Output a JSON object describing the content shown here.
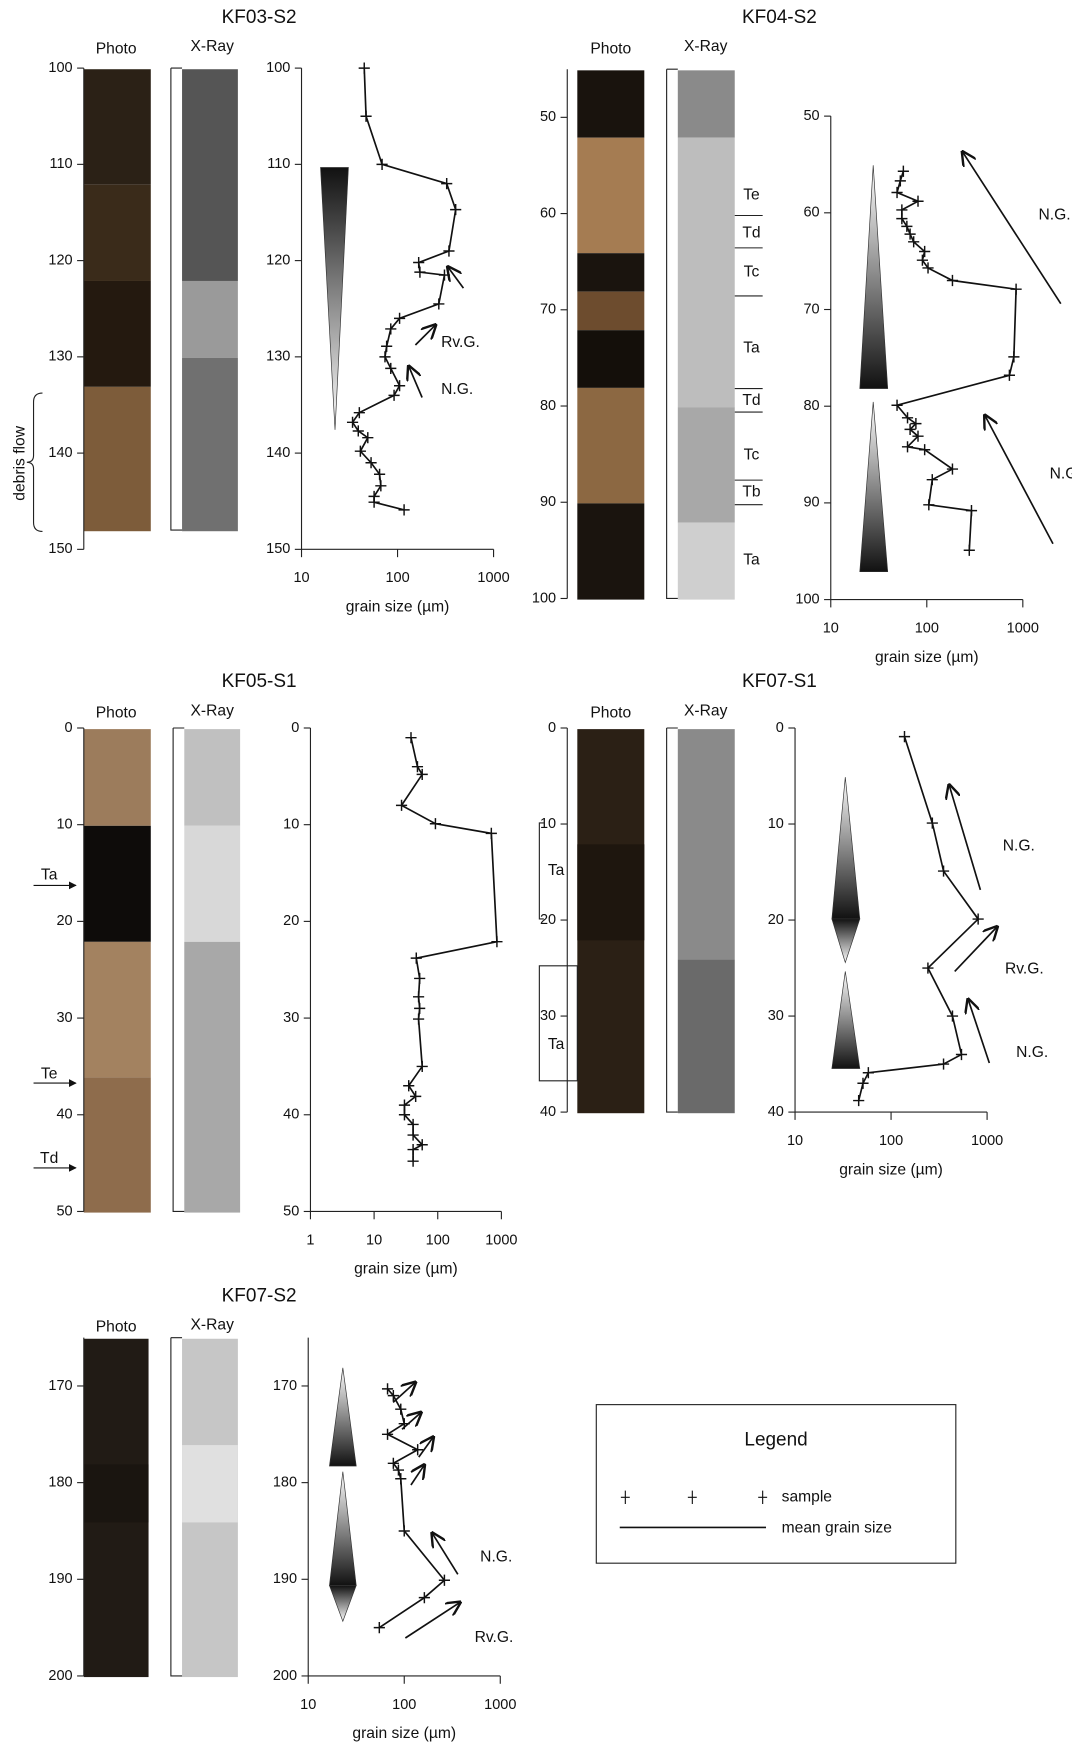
{
  "chart_data": [
    {
      "type": "line",
      "title": "KF03-S2",
      "image_labels": [
        "Photo",
        "X-Ray"
      ],
      "core_ylim": [
        100,
        150
      ],
      "core_yticks": [
        100,
        110,
        120,
        130,
        140,
        150
      ],
      "core_labels": [
        "debris flow"
      ],
      "xlabel": "grain size (µm)",
      "xscale": "log",
      "xlim": [
        10,
        1000
      ],
      "xticks": [
        10,
        100,
        1000
      ],
      "ylim": [
        100,
        150
      ],
      "yticks": [
        100,
        110,
        120,
        130,
        140,
        150
      ],
      "color": "#111111",
      "x": [
        45,
        47,
        69,
        325,
        403,
        343,
        166,
        171,
        308,
        269,
        105,
        85,
        77,
        74,
        85,
        105,
        92,
        40,
        34,
        39,
        49,
        41,
        53,
        65,
        67,
        57,
        57,
        117
      ],
      "y": [
        100,
        105,
        110,
        112,
        114.7,
        119,
        120.2,
        121.2,
        121.5,
        124.5,
        126,
        127.1,
        128.9,
        130,
        131.2,
        133,
        134,
        135.8,
        136.8,
        137.7,
        138.4,
        139.8,
        141,
        142.2,
        143.4,
        144.5,
        145.1,
        145.9
      ],
      "annotations": [
        "Rv.G.",
        "N.G."
      ]
    },
    {
      "type": "line",
      "title": "KF04-S2",
      "image_labels": [
        "Photo",
        "X-Ray"
      ],
      "core_ylim": [
        45,
        100
      ],
      "core_yticks": [
        50,
        60,
        70,
        80,
        90,
        100
      ],
      "core_labels": [
        "Te",
        "Td",
        "Tc",
        "Ta",
        "Td",
        "Tc",
        "Tb",
        "Ta"
      ],
      "xlabel": "grain size (µm)",
      "xscale": "log",
      "xlim": [
        10,
        1000
      ],
      "xticks": [
        10,
        100,
        1000
      ],
      "ylim": [
        50,
        100
      ],
      "yticks": [
        50,
        60,
        70,
        80,
        90,
        100
      ],
      "color": "#111111",
      "x": [
        57,
        53,
        49,
        81,
        55,
        55,
        62,
        67,
        73,
        95,
        90,
        103,
        185,
        851,
        807,
        725,
        49,
        63,
        77,
        67,
        81,
        63,
        95,
        185,
        114,
        105,
        292,
        277
      ],
      "y": [
        55.7,
        56.7,
        57.9,
        58.8,
        59.7,
        60.6,
        61.4,
        62.2,
        63,
        64,
        64.9,
        65.7,
        67,
        67.9,
        74.9,
        76.8,
        79.9,
        81.2,
        81.8,
        82.4,
        83.1,
        84.2,
        84.5,
        86.5,
        87.6,
        90.2,
        90.8,
        94.9
      ],
      "annotations": [
        "N.G.",
        "N.G."
      ]
    },
    {
      "type": "line",
      "title": "KF05-S1",
      "image_labels": [
        "Photo",
        "X-Ray"
      ],
      "core_ylim": [
        0,
        50
      ],
      "core_yticks": [
        0,
        10,
        20,
        30,
        40,
        50
      ],
      "core_labels": [
        "Ta",
        "Te",
        "Td"
      ],
      "xlabel": "grain size (µm)",
      "xscale": "log",
      "xlim": [
        1,
        1000
      ],
      "xticks": [
        1,
        10,
        100,
        1000
      ],
      "ylim": [
        0,
        50
      ],
      "yticks": [
        0,
        10,
        20,
        30,
        40,
        50
      ],
      "color": "#111111",
      "x": [
        38,
        48,
        57,
        27,
        92,
        695,
        851,
        46,
        52,
        50,
        52,
        50,
        57,
        35,
        45,
        30,
        30,
        41,
        41,
        57,
        41,
        41
      ],
      "y": [
        1,
        4,
        4.8,
        8,
        9.9,
        10.9,
        22.1,
        23.8,
        25.9,
        27.8,
        29,
        30.1,
        35,
        37,
        38.1,
        39,
        40,
        41,
        42.1,
        43.1,
        43.6,
        44.8
      ],
      "annotations": []
    },
    {
      "type": "line",
      "title": "KF07-S1",
      "image_labels": [
        "Photo",
        "X-Ray"
      ],
      "core_ylim": [
        0,
        40
      ],
      "core_yticks": [
        0,
        10,
        20,
        30,
        40
      ],
      "core_labels": [
        "Ta",
        "Ta"
      ],
      "xlabel": "grain size (µm)",
      "xscale": "log",
      "xlim": [
        10,
        1000
      ],
      "xticks": [
        10,
        100,
        1000
      ],
      "ylim": [
        0,
        40
      ],
      "yticks": [
        0,
        10,
        20,
        30,
        40
      ],
      "color": "#111111",
      "x": [
        138,
        269,
        352,
        807,
        242,
        436,
        541,
        352,
        58,
        51,
        46
      ],
      "y": [
        0.9,
        9.9,
        14.9,
        19.9,
        25,
        30,
        34,
        35,
        35.9,
        37,
        38.8
      ],
      "annotations": [
        "N.G.",
        "Rv.G.",
        "N.G."
      ]
    },
    {
      "type": "line",
      "title": "KF07-S2",
      "image_labels": [
        "Photo",
        "X-Ray"
      ],
      "core_ylim": [
        165,
        200
      ],
      "core_yticks": [
        170,
        180,
        190,
        200
      ],
      "core_labels": [],
      "xlabel": "grain size (µm)",
      "xscale": "log",
      "xlim": [
        10,
        1000
      ],
      "xticks": [
        10,
        100,
        1000
      ],
      "ylim": [
        165,
        200
      ],
      "yticks": [
        170,
        180,
        190,
        200
      ],
      "color": "#111111",
      "x": [
        67,
        77,
        92,
        100,
        67,
        138,
        77,
        87,
        92,
        100,
        262,
        162,
        55
      ],
      "y": [
        170.3,
        171,
        172.4,
        173.9,
        175,
        176.6,
        178,
        178.7,
        179.6,
        185,
        190.1,
        191.9,
        195
      ],
      "annotations": [
        "N.G.",
        "Rv.G."
      ]
    }
  ],
  "legend": {
    "title": "Legend",
    "items": [
      "sample",
      "mean grain size"
    ]
  }
}
